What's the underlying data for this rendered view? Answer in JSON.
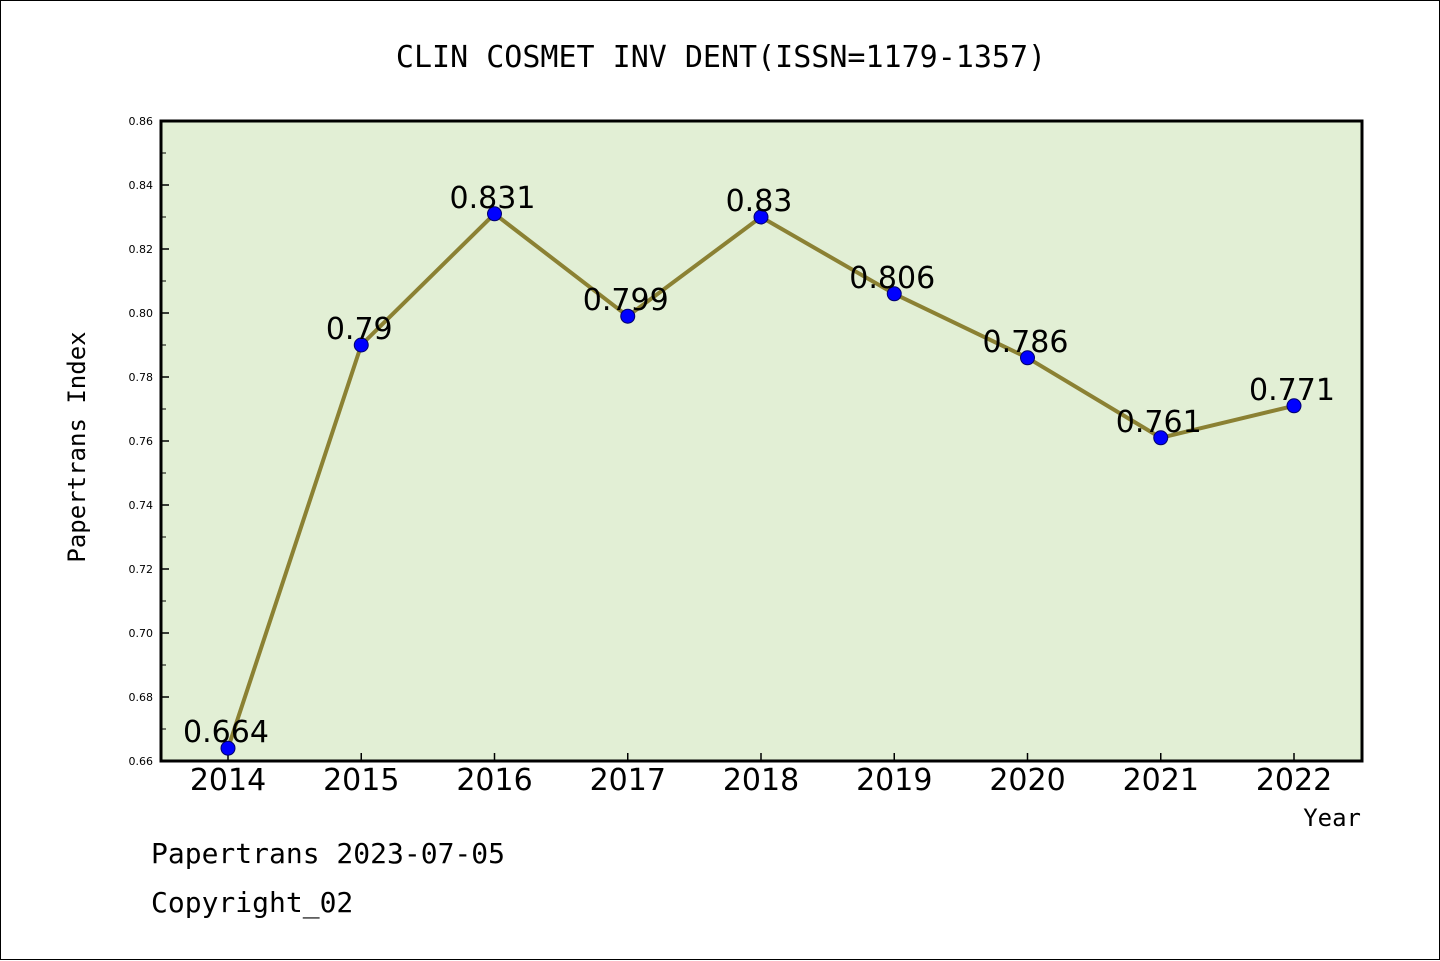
{
  "chart_data": {
    "type": "line",
    "title": "CLIN COSMET INV DENT(ISSN=1179-1357)",
    "xlabel": "Year",
    "ylabel": "Papertrans Index",
    "categories": [
      "2014",
      "2015",
      "2016",
      "2017",
      "2018",
      "2019",
      "2020",
      "2021",
      "2022"
    ],
    "series": [
      {
        "values": [
          0.664,
          0.79,
          0.831,
          0.799,
          0.83,
          0.806,
          0.786,
          0.761,
          0.771
        ],
        "labels": [
          "0.664",
          "0.79",
          "0.831",
          "0.799",
          "0.83",
          "0.806",
          "0.786",
          "0.761",
          "0.771"
        ]
      }
    ],
    "ylim": [
      0.66,
      0.86
    ],
    "yticks": [
      "0.66",
      "0.68",
      "0.70",
      "0.72",
      "0.74",
      "0.76",
      "0.78",
      "0.80",
      "0.82",
      "0.84",
      "0.86"
    ],
    "grid": false,
    "colors": {
      "plot_background": "#e2efd5",
      "line": "#8b8133",
      "marker": "#0000ff"
    }
  },
  "footer": {
    "date_text": "Papertrans 2023-07-05",
    "copyright_text": "Copyright_02"
  }
}
